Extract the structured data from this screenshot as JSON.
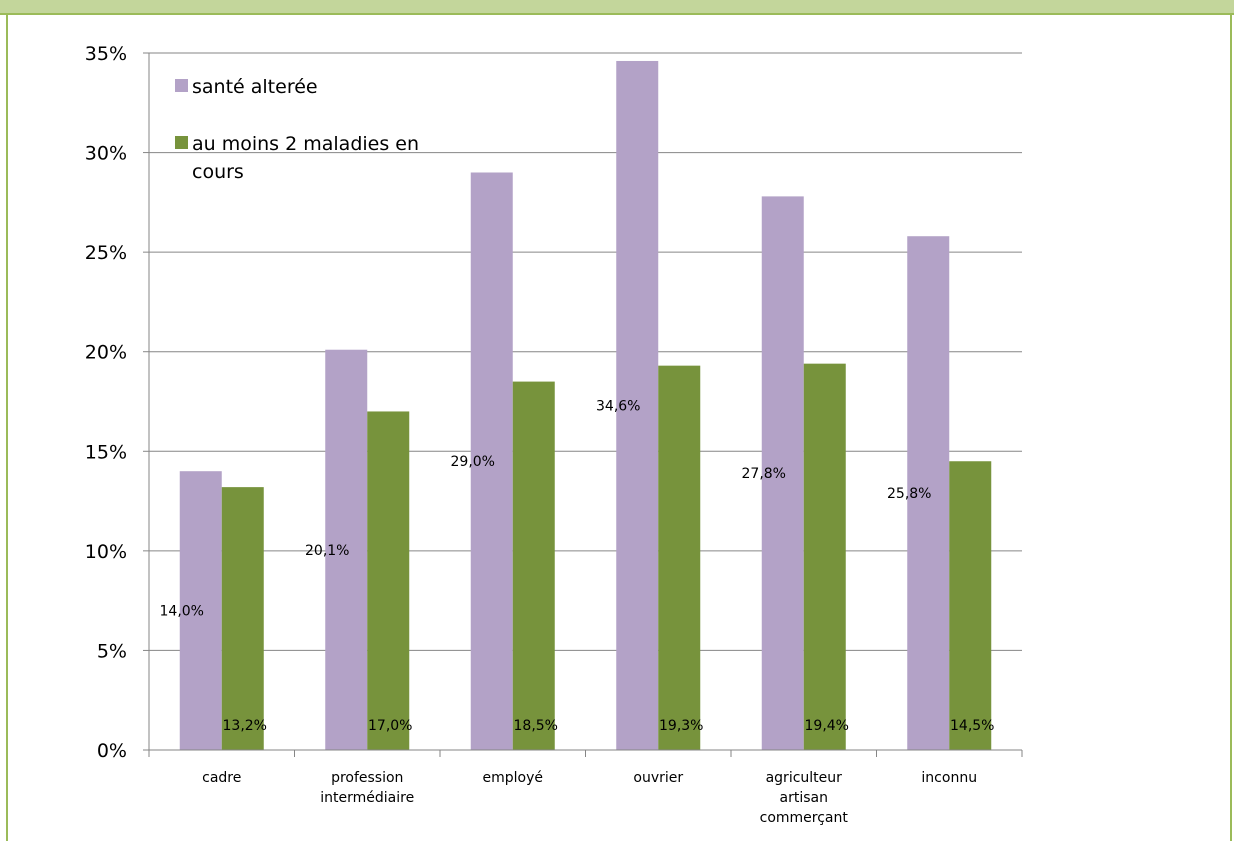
{
  "chart_data": {
    "type": "bar",
    "categories": [
      [
        "cadre"
      ],
      [
        "profession",
        "intermédiaire"
      ],
      [
        "employé"
      ],
      [
        "ouvrier"
      ],
      [
        "agriculteur",
        "artisan",
        "commerçant"
      ],
      [
        "inconnu"
      ]
    ],
    "series": [
      {
        "name": [
          "santé alterée"
        ],
        "values": [
          14.0,
          20.1,
          29.0,
          34.6,
          27.8,
          25.8
        ],
        "labels": [
          "14,0%",
          "20,1%",
          "29,0%",
          "34,6%",
          "27,8%",
          "25,8%"
        ],
        "color": "#b3a2c7"
      },
      {
        "name": [
          "au moins 2 maladies en",
          "cours"
        ],
        "values": [
          13.2,
          17.0,
          18.5,
          19.3,
          19.4,
          14.5
        ],
        "labels": [
          "13,2%",
          "17,0%",
          "18,5%",
          "19,3%",
          "19,4%",
          "14,5%"
        ],
        "color": "#77933c"
      }
    ],
    "y_ticks": [
      "0%",
      "5%",
      "10%",
      "15%",
      "20%",
      "25%",
      "30%",
      "35%"
    ],
    "ylim": [
      0,
      35
    ],
    "grid": true,
    "legend": "top-left"
  }
}
